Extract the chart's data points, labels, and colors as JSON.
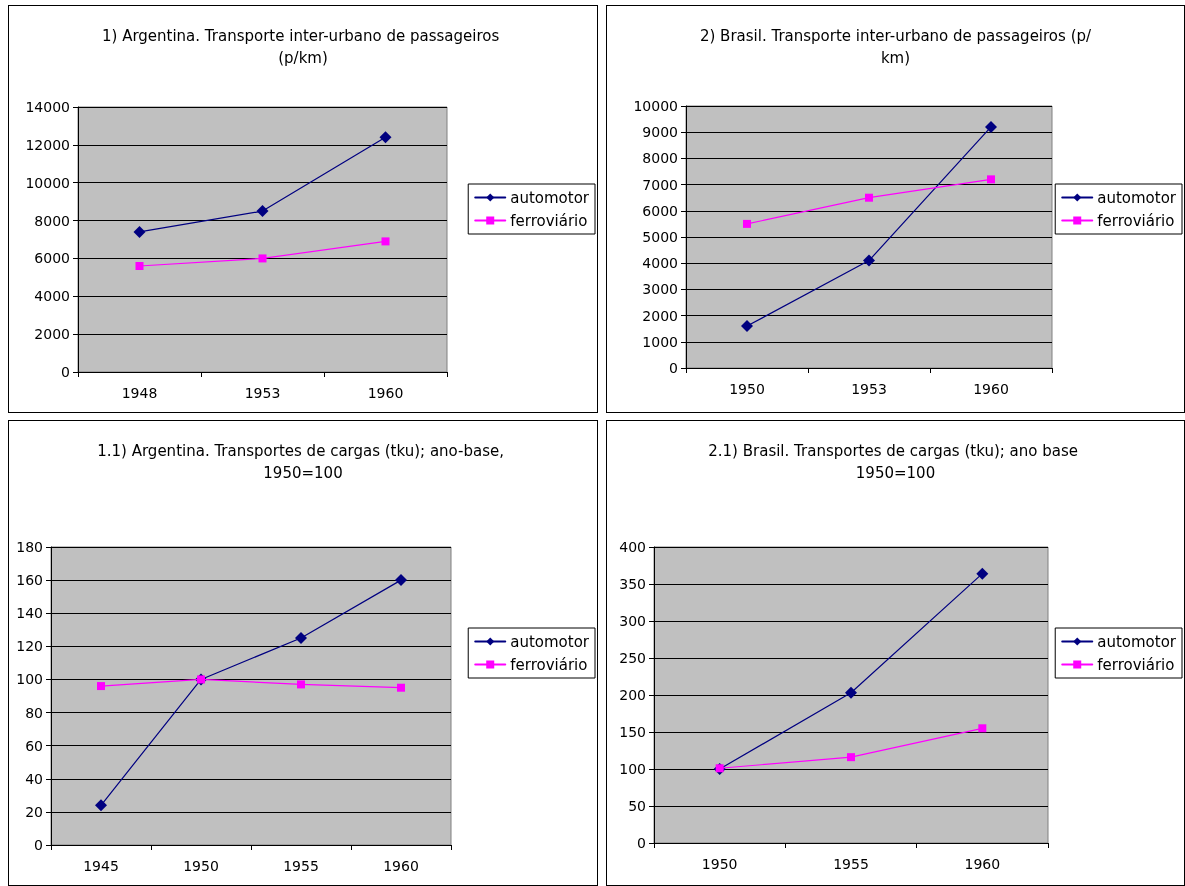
{
  "chart_data": [
    {
      "type": "line",
      "title": "1) Argentina. Transporte inter-urbano de passageiros (p/km)",
      "categories": [
        "1948",
        "1953",
        "1960"
      ],
      "ylim": [
        0,
        14000
      ],
      "yticks": [
        0,
        2000,
        4000,
        6000,
        8000,
        10000,
        12000,
        14000
      ],
      "grid": "y",
      "legend": "right",
      "series": [
        {
          "name": "automotor",
          "color": "#000080",
          "marker": "diamond",
          "values": [
            7400,
            8500,
            12400
          ]
        },
        {
          "name": "ferroviário",
          "color": "#ff00ff",
          "marker": "square",
          "values": [
            5600,
            6000,
            6900
          ]
        }
      ]
    },
    {
      "type": "line",
      "title": "2) Brasil. Transporte inter-urbano de passageiros (p/km)",
      "categories": [
        "1950",
        "1953",
        "1960"
      ],
      "ylim": [
        0,
        10000
      ],
      "yticks": [
        0,
        1000,
        2000,
        3000,
        4000,
        5000,
        6000,
        7000,
        8000,
        9000,
        10000
      ],
      "grid": "y",
      "legend": "right",
      "series": [
        {
          "name": "automotor",
          "color": "#000080",
          "marker": "diamond",
          "values": [
            1600,
            4100,
            9200
          ]
        },
        {
          "name": "ferroviário",
          "color": "#ff00ff",
          "marker": "square",
          "values": [
            5500,
            6500,
            7200
          ]
        }
      ]
    },
    {
      "type": "line",
      "title": "1.1) Argentina. Transportes de cargas (tku); ano-base, 1950=100",
      "categories": [
        "1945",
        "1950",
        "1955",
        "1960"
      ],
      "ylim": [
        0,
        180
      ],
      "yticks": [
        0,
        20,
        40,
        60,
        80,
        100,
        120,
        140,
        160,
        180
      ],
      "grid": "y",
      "legend": "right",
      "series": [
        {
          "name": "automotor",
          "color": "#000080",
          "marker": "diamond",
          "values": [
            24,
            100,
            125,
            160
          ]
        },
        {
          "name": "ferroviário",
          "color": "#ff00ff",
          "marker": "square",
          "values": [
            96,
            100,
            97,
            95
          ]
        }
      ]
    },
    {
      "type": "line",
      "title": "2.1) Brasil. Transportes de cargas (tku); ano base 1950=100",
      "categories": [
        "1950",
        "1955",
        "1960"
      ],
      "ylim": [
        0,
        400
      ],
      "yticks": [
        0,
        50,
        100,
        150,
        200,
        250,
        300,
        350,
        400
      ],
      "grid": "y",
      "legend": "right",
      "series": [
        {
          "name": "automotor",
          "color": "#000080",
          "marker": "diamond",
          "values": [
            100,
            203,
            364
          ]
        },
        {
          "name": "ferroviário",
          "color": "#ff00ff",
          "marker": "square",
          "values": [
            101,
            116,
            155
          ]
        }
      ]
    }
  ]
}
